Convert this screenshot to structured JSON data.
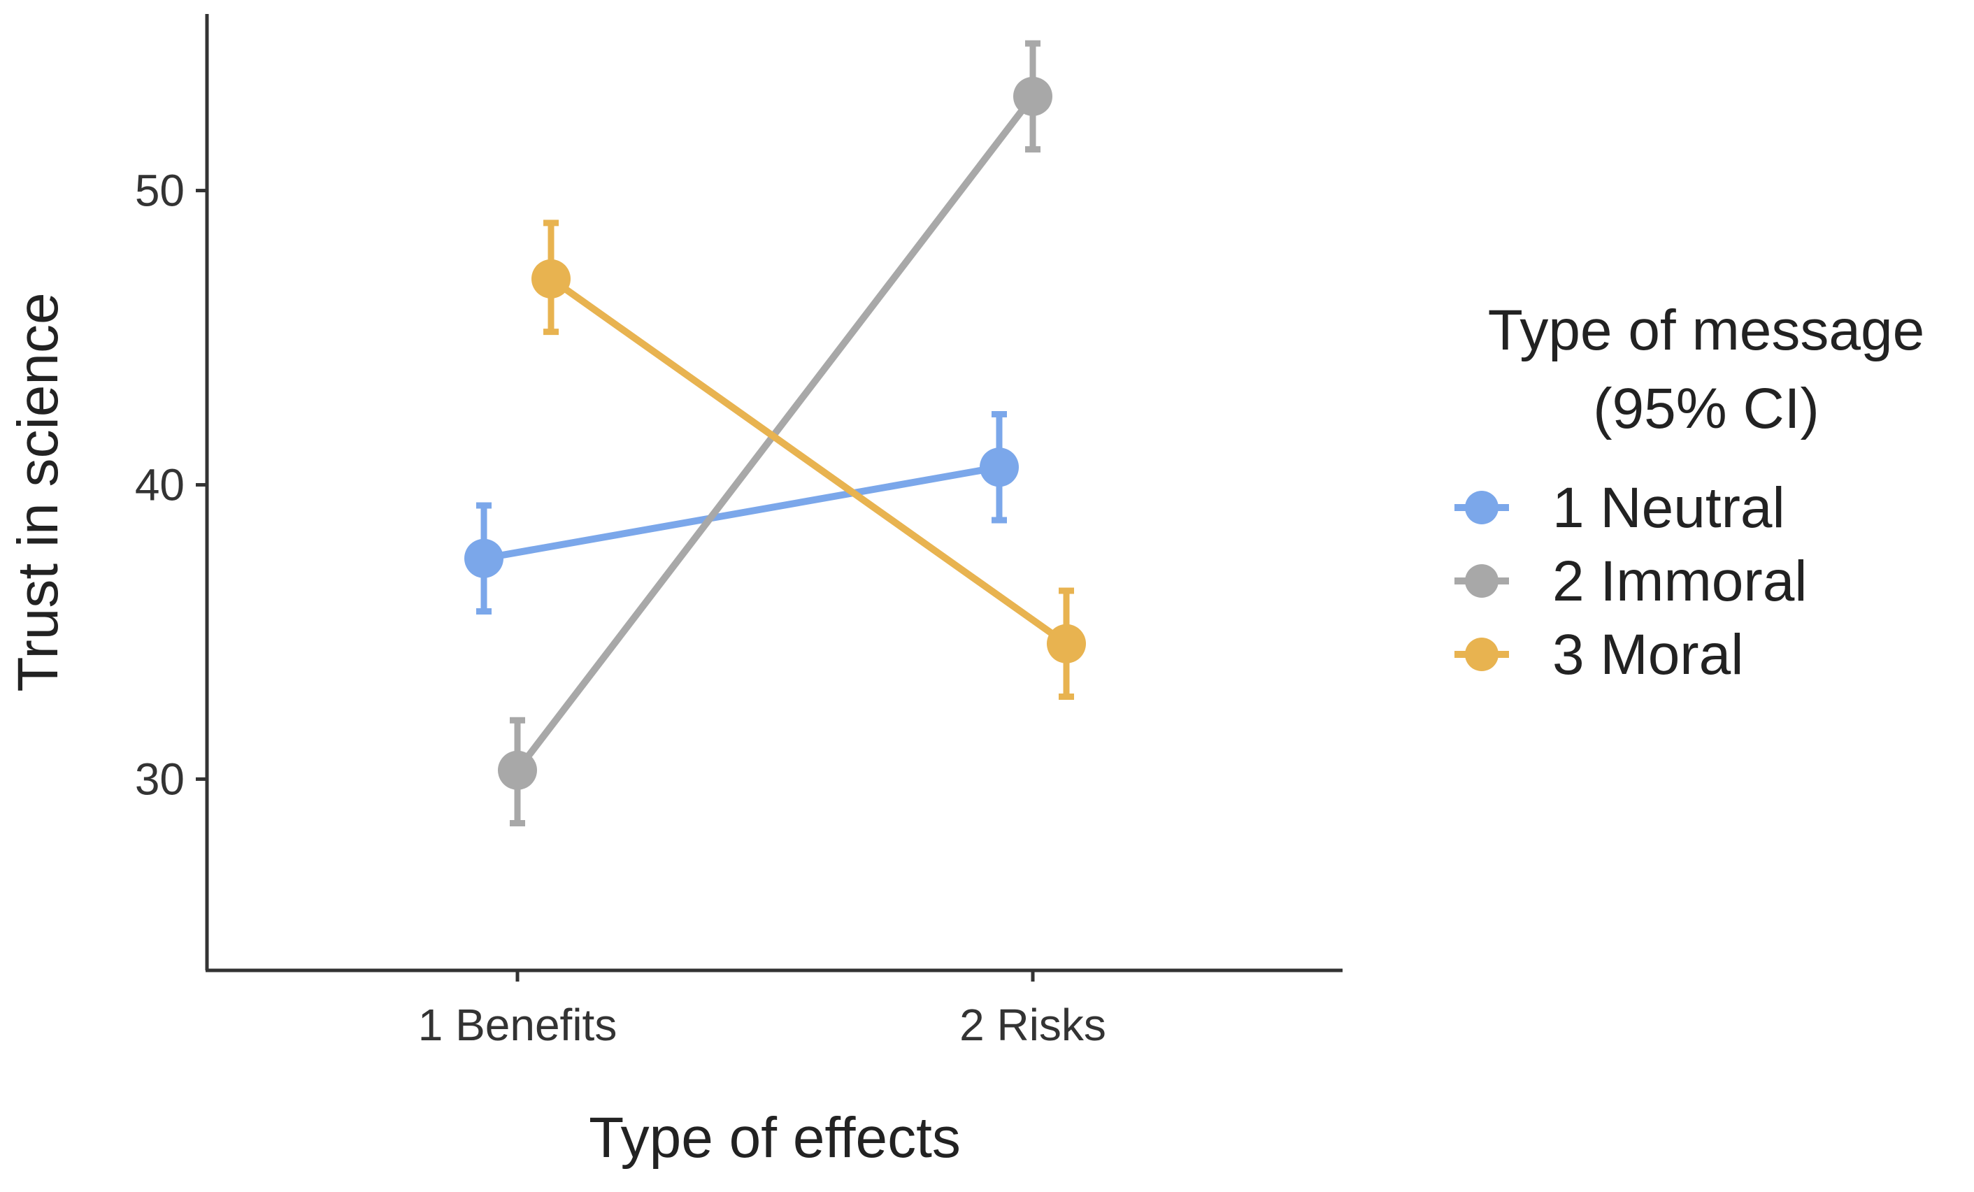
{
  "chart_data": {
    "type": "line",
    "title": "",
    "xlabel": "Type of effects",
    "ylabel": "Trust in science",
    "categories": [
      "1 Benefits",
      "2 Risks"
    ],
    "ylim": [
      23.5,
      56
    ],
    "yticks": [
      30,
      40,
      50
    ],
    "grid": false,
    "legend_position": "right",
    "legend_title_lines": [
      "Type of message",
      "(95% CI)"
    ],
    "series": [
      {
        "name": "1 Neutral",
        "color": "#7BA7EA",
        "values": [
          37.5,
          40.6
        ],
        "ci_low": [
          35.7,
          38.8
        ],
        "ci_high": [
          39.3,
          42.4
        ]
      },
      {
        "name": "2 Immoral",
        "color": "#A8A8A8",
        "values": [
          30.3,
          53.2
        ],
        "ci_low": [
          28.5,
          51.4
        ],
        "ci_high": [
          32.0,
          55.0
        ]
      },
      {
        "name": "3 Moral",
        "color": "#E8B350",
        "values": [
          47.0,
          34.6
        ],
        "ci_low": [
          45.2,
          32.8
        ],
        "ci_high": [
          48.9,
          36.4
        ]
      }
    ]
  }
}
